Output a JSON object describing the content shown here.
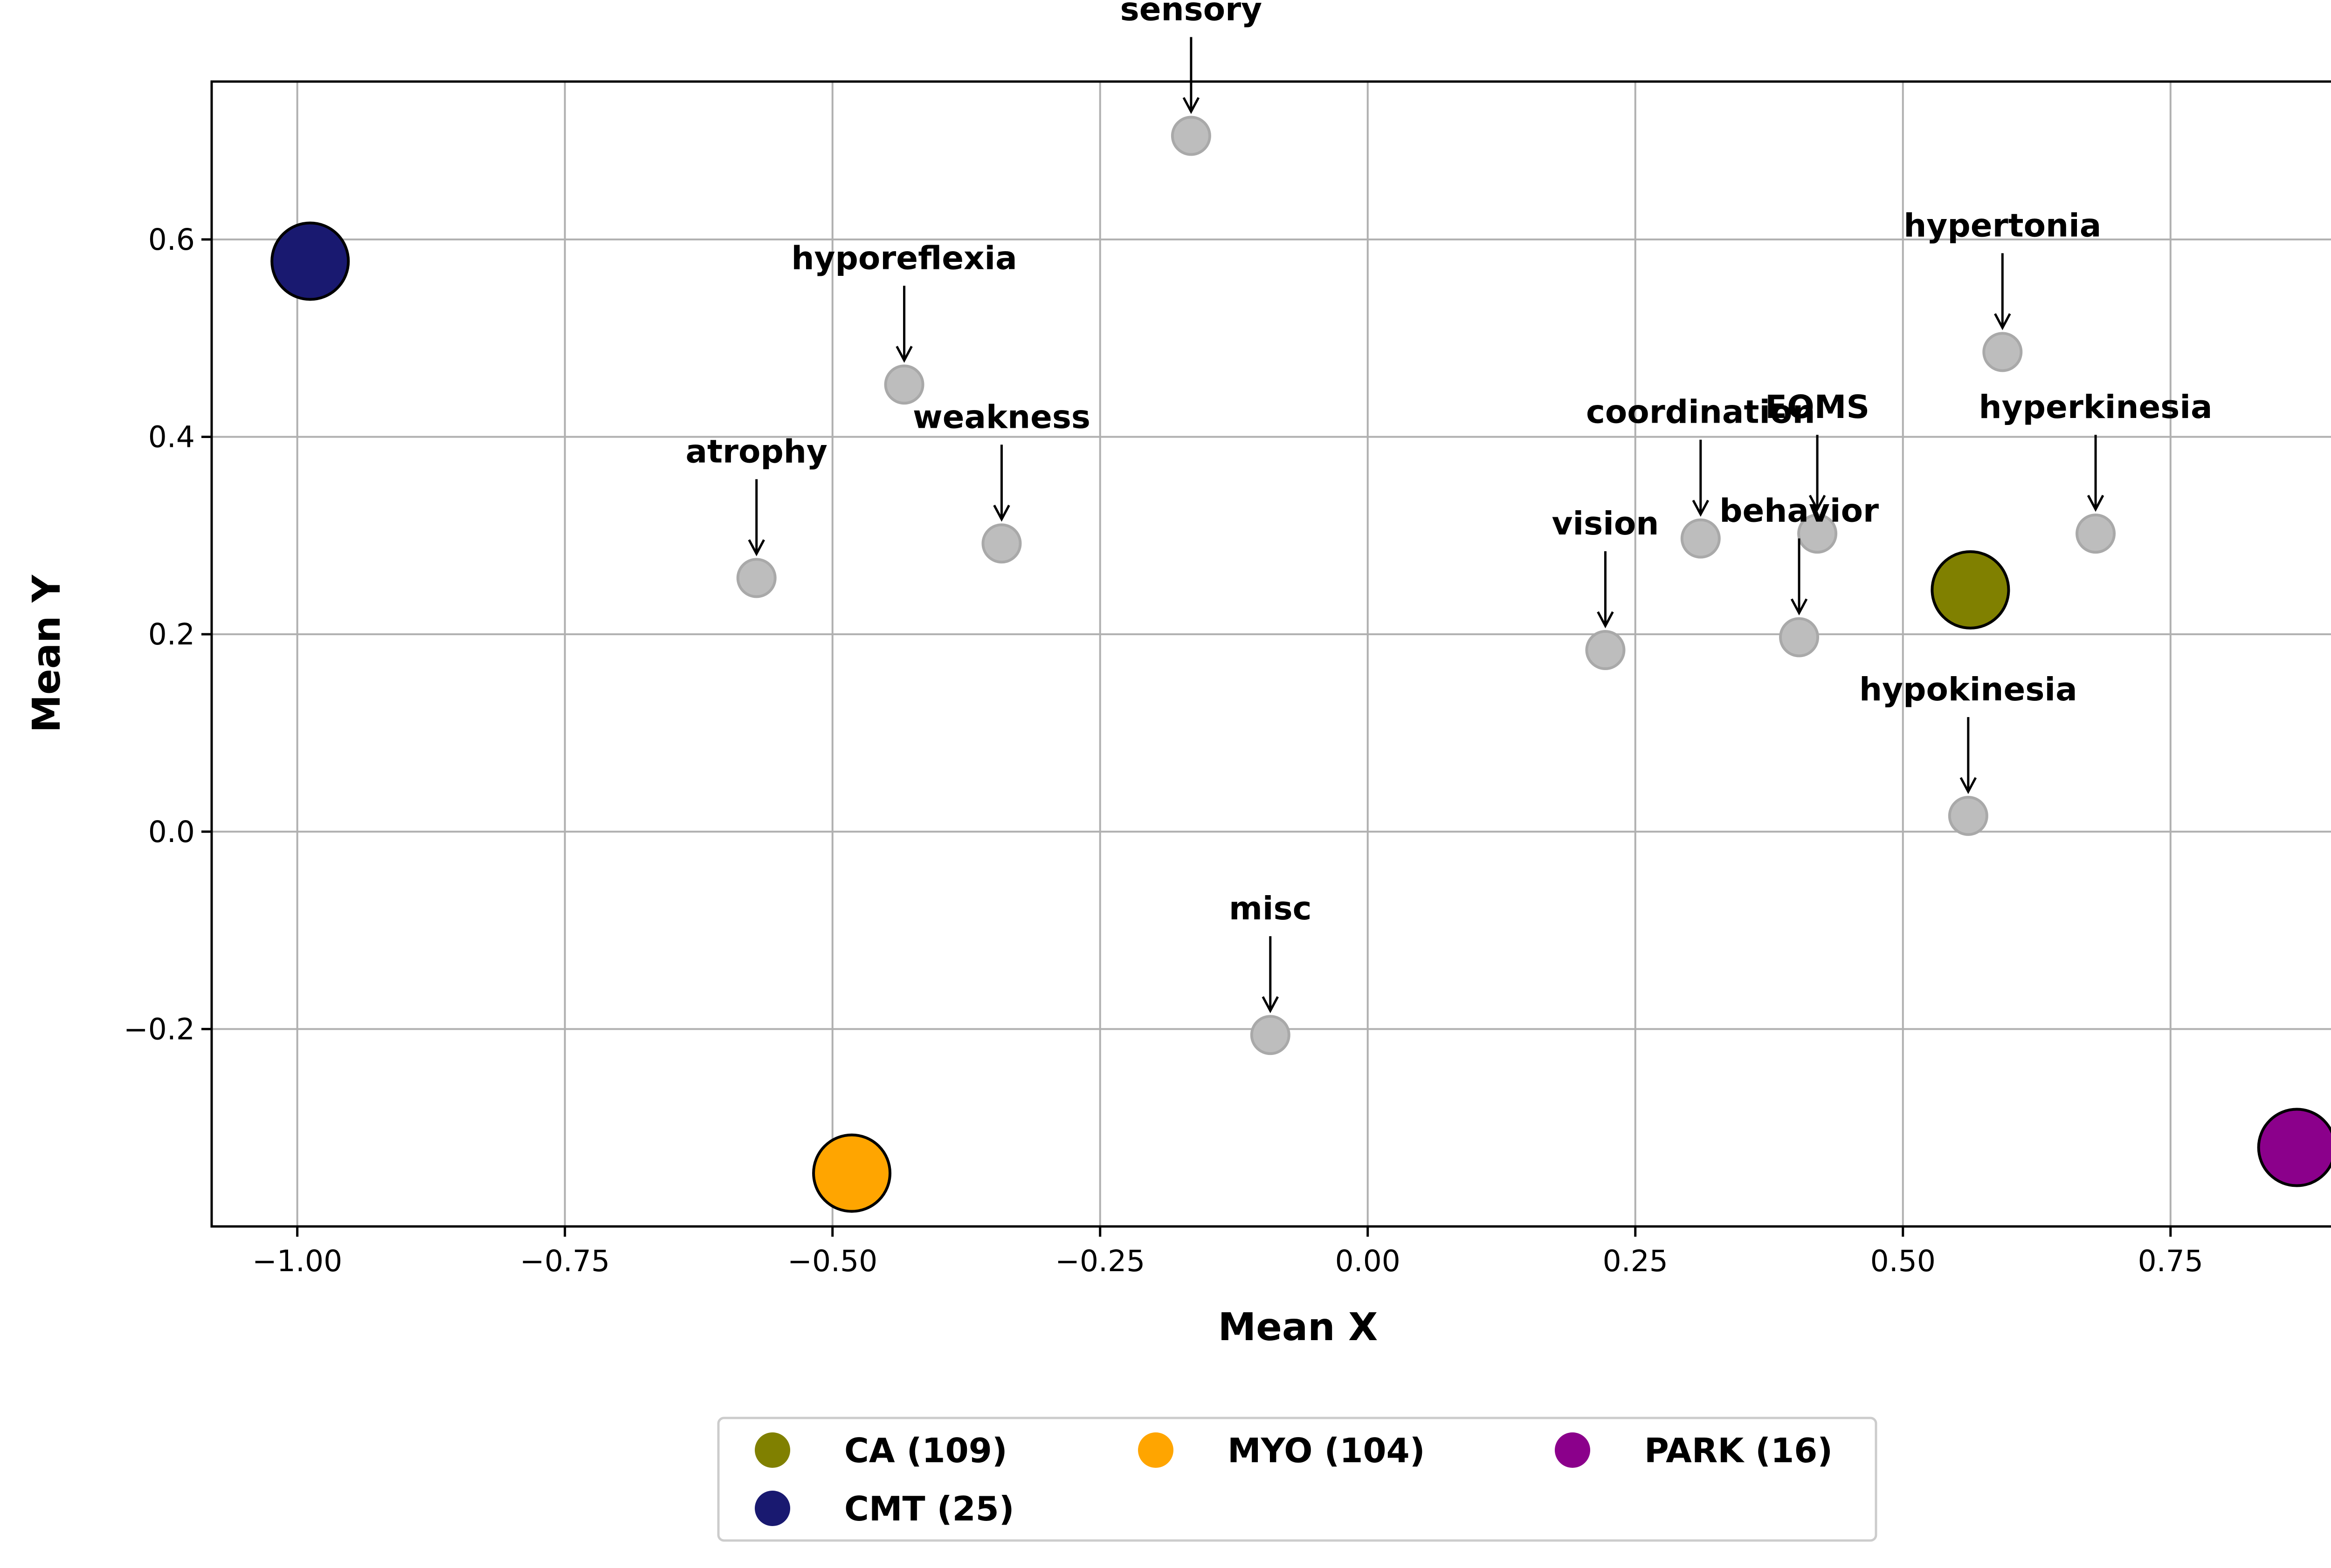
{
  "chart_data": {
    "type": "scatter",
    "title": "",
    "xlabel": "Mean X",
    "ylabel": "Mean Y",
    "xlim": [
      -1.08,
      0.95
    ],
    "ylim": [
      -0.4,
      0.76
    ],
    "xticks": [
      {
        "value": -1.0,
        "label": "−1.00"
      },
      {
        "value": -0.75,
        "label": "−0.75"
      },
      {
        "value": -0.5,
        "label": "−0.50"
      },
      {
        "value": -0.25,
        "label": "−0.25"
      },
      {
        "value": 0.0,
        "label": "0.00"
      },
      {
        "value": 0.25,
        "label": "0.25"
      },
      {
        "value": 0.5,
        "label": "0.50"
      },
      {
        "value": 0.75,
        "label": "0.75"
      }
    ],
    "yticks": [
      {
        "value": -0.2,
        "label": "−0.2"
      },
      {
        "value": 0.0,
        "label": "0.0"
      },
      {
        "value": 0.2,
        "label": "0.2"
      },
      {
        "value": 0.4,
        "label": "0.4"
      },
      {
        "value": 0.6,
        "label": "0.6"
      }
    ],
    "grid": true,
    "legend_position": "bottom-center",
    "feature_color": "#bdbdbd",
    "features": [
      {
        "label": "sensory",
        "x": -0.165,
        "y": 0.705
      },
      {
        "label": "hyporeflexia",
        "x": -0.433,
        "y": 0.453
      },
      {
        "label": "atrophy",
        "x": -0.571,
        "y": 0.257
      },
      {
        "label": "weakness",
        "x": -0.342,
        "y": 0.292
      },
      {
        "label": "misc",
        "x": -0.091,
        "y": -0.206
      },
      {
        "label": "vision",
        "x": 0.222,
        "y": 0.184
      },
      {
        "label": "coordination",
        "x": 0.311,
        "y": 0.297
      },
      {
        "label": "EOMS",
        "x": 0.42,
        "y": 0.302
      },
      {
        "label": "behavior",
        "x": 0.403,
        "y": 0.197
      },
      {
        "label": "hypertonia",
        "x": 0.593,
        "y": 0.486
      },
      {
        "label": "hyperkinesia",
        "x": 0.68,
        "y": 0.302
      },
      {
        "label": "hypokinesia",
        "x": 0.561,
        "y": 0.016
      }
    ],
    "series": [
      {
        "name": "CA (109)",
        "x": 0.563,
        "y": 0.245,
        "color": "#808000"
      },
      {
        "name": "CMT (25)",
        "x": -0.988,
        "y": 0.578,
        "color": "#191970"
      },
      {
        "name": "MYO (104)",
        "x": -0.482,
        "y": -0.346,
        "color": "#ffa500"
      },
      {
        "name": "PARK (16)",
        "x": 0.868,
        "y": -0.32,
        "color": "#8b008b"
      }
    ]
  }
}
